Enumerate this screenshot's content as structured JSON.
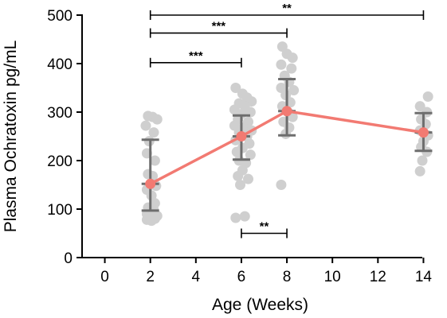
{
  "chart_data": {
    "type": "scatter",
    "xlabel": "Age (Weeks)",
    "ylabel": "Plasma Ochratoxin pg/mL",
    "xlim": [
      -1,
      15
    ],
    "ylim": [
      0,
      500
    ],
    "x_ticks": [
      "0",
      "2",
      "4",
      "6",
      "8",
      "10",
      "12",
      "14"
    ],
    "y_ticks": [
      "0",
      "100",
      "200",
      "300",
      "400",
      "500"
    ],
    "colors": {
      "mean": "#f27a72",
      "points": "#cfcfcf",
      "error_bars": "#6e6e6e"
    },
    "groups": [
      {
        "x": 2,
        "mean": 152,
        "sd_low": 97,
        "sd_high": 243,
        "points": [
          {
            "x": 1.9,
            "y": 292
          },
          {
            "x": 2.1,
            "y": 290
          },
          {
            "x": 2.3,
            "y": 285
          },
          {
            "x": 1.8,
            "y": 272
          },
          {
            "x": 2.15,
            "y": 258
          },
          {
            "x": 1.95,
            "y": 240
          },
          {
            "x": 1.85,
            "y": 215
          },
          {
            "x": 2.2,
            "y": 200
          },
          {
            "x": 1.9,
            "y": 172
          },
          {
            "x": 2.1,
            "y": 168
          },
          {
            "x": 2.25,
            "y": 148
          },
          {
            "x": 1.85,
            "y": 140
          },
          {
            "x": 2.05,
            "y": 128
          },
          {
            "x": 2.2,
            "y": 112
          },
          {
            "x": 1.9,
            "y": 103
          },
          {
            "x": 2.15,
            "y": 98
          },
          {
            "x": 1.85,
            "y": 90
          },
          {
            "x": 2.3,
            "y": 86
          },
          {
            "x": 1.95,
            "y": 82
          },
          {
            "x": 2.2,
            "y": 80
          },
          {
            "x": 1.85,
            "y": 78
          },
          {
            "x": 2.05,
            "y": 76
          }
        ]
      },
      {
        "x": 6,
        "mean": 250,
        "sd_low": 202,
        "sd_high": 293,
        "points": [
          {
            "x": 5.75,
            "y": 350
          },
          {
            "x": 6.05,
            "y": 338
          },
          {
            "x": 6.25,
            "y": 330
          },
          {
            "x": 6.45,
            "y": 322
          },
          {
            "x": 5.9,
            "y": 318
          },
          {
            "x": 6.15,
            "y": 312
          },
          {
            "x": 5.7,
            "y": 305
          },
          {
            "x": 6.4,
            "y": 300
          },
          {
            "x": 6.0,
            "y": 296
          },
          {
            "x": 5.85,
            "y": 285
          },
          {
            "x": 6.3,
            "y": 280
          },
          {
            "x": 5.7,
            "y": 272
          },
          {
            "x": 6.1,
            "y": 268
          },
          {
            "x": 6.45,
            "y": 262
          },
          {
            "x": 5.9,
            "y": 258
          },
          {
            "x": 6.25,
            "y": 250
          },
          {
            "x": 5.75,
            "y": 242
          },
          {
            "x": 6.35,
            "y": 235
          },
          {
            "x": 6.05,
            "y": 226
          },
          {
            "x": 5.8,
            "y": 218
          },
          {
            "x": 6.4,
            "y": 212
          },
          {
            "x": 5.9,
            "y": 200
          },
          {
            "x": 6.2,
            "y": 195
          },
          {
            "x": 6.05,
            "y": 180
          },
          {
            "x": 5.85,
            "y": 168
          },
          {
            "x": 6.3,
            "y": 162
          },
          {
            "x": 5.95,
            "y": 150
          },
          {
            "x": 5.75,
            "y": 82
          },
          {
            "x": 6.15,
            "y": 85
          }
        ]
      },
      {
        "x": 8,
        "mean": 302,
        "sd_low": 252,
        "sd_high": 368,
        "points": [
          {
            "x": 7.8,
            "y": 435
          },
          {
            "x": 8.0,
            "y": 420
          },
          {
            "x": 8.25,
            "y": 412
          },
          {
            "x": 7.75,
            "y": 398
          },
          {
            "x": 8.2,
            "y": 390
          },
          {
            "x": 7.9,
            "y": 375
          },
          {
            "x": 8.1,
            "y": 362
          },
          {
            "x": 7.75,
            "y": 350
          },
          {
            "x": 8.3,
            "y": 345
          },
          {
            "x": 7.95,
            "y": 335
          },
          {
            "x": 8.15,
            "y": 320
          },
          {
            "x": 7.8,
            "y": 312
          },
          {
            "x": 8.05,
            "y": 300
          },
          {
            "x": 8.25,
            "y": 290
          },
          {
            "x": 7.85,
            "y": 280
          },
          {
            "x": 8.1,
            "y": 268
          },
          {
            "x": 7.95,
            "y": 255
          },
          {
            "x": 7.75,
            "y": 150
          }
        ]
      },
      {
        "x": 14,
        "mean": 258,
        "sd_low": 220,
        "sd_high": 298,
        "points": [
          {
            "x": 14.2,
            "y": 332
          },
          {
            "x": 13.85,
            "y": 312
          },
          {
            "x": 14.15,
            "y": 300
          },
          {
            "x": 13.9,
            "y": 285
          },
          {
            "x": 14.1,
            "y": 275
          },
          {
            "x": 13.85,
            "y": 262
          },
          {
            "x": 14.2,
            "y": 252
          },
          {
            "x": 14.0,
            "y": 240
          },
          {
            "x": 13.9,
            "y": 228
          },
          {
            "x": 14.15,
            "y": 218
          },
          {
            "x": 13.95,
            "y": 200
          },
          {
            "x": 13.85,
            "y": 178
          }
        ]
      }
    ],
    "comparisons": [
      {
        "x1": 2,
        "x2": 14,
        "y": 500,
        "label": "**"
      },
      {
        "x1": 2,
        "x2": 8,
        "y": 463,
        "label": "***"
      },
      {
        "x1": 2,
        "x2": 6,
        "y": 402,
        "label": "***"
      },
      {
        "x1": 6,
        "x2": 8,
        "y": 50,
        "label": "**"
      }
    ]
  }
}
